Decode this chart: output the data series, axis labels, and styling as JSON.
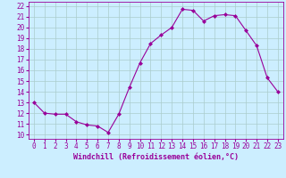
{
  "hours": [
    0,
    1,
    2,
    3,
    4,
    5,
    6,
    7,
    8,
    9,
    10,
    11,
    12,
    13,
    14,
    15,
    16,
    17,
    18,
    19,
    20,
    21,
    22,
    23
  ],
  "values": [
    13.0,
    12.0,
    11.9,
    11.9,
    11.2,
    10.9,
    10.8,
    10.2,
    11.9,
    14.4,
    16.7,
    18.5,
    19.3,
    20.0,
    21.7,
    21.6,
    20.6,
    21.1,
    21.2,
    21.1,
    19.7,
    18.3,
    15.3,
    14.0
  ],
  "line_color": "#990099",
  "marker": "D",
  "marker_size": 2.0,
  "bg_color": "#cceeff",
  "grid_color": "#aacccc",
  "ylabel_vals": [
    10,
    11,
    12,
    13,
    14,
    15,
    16,
    17,
    18,
    19,
    20,
    21,
    22
  ],
  "ylim": [
    9.6,
    22.4
  ],
  "xlim": [
    -0.5,
    23.5
  ],
  "xlabel": "Windchill (Refroidissement éolien,°C)",
  "tick_fontsize": 5.5,
  "xlabel_fontsize": 6.0
}
